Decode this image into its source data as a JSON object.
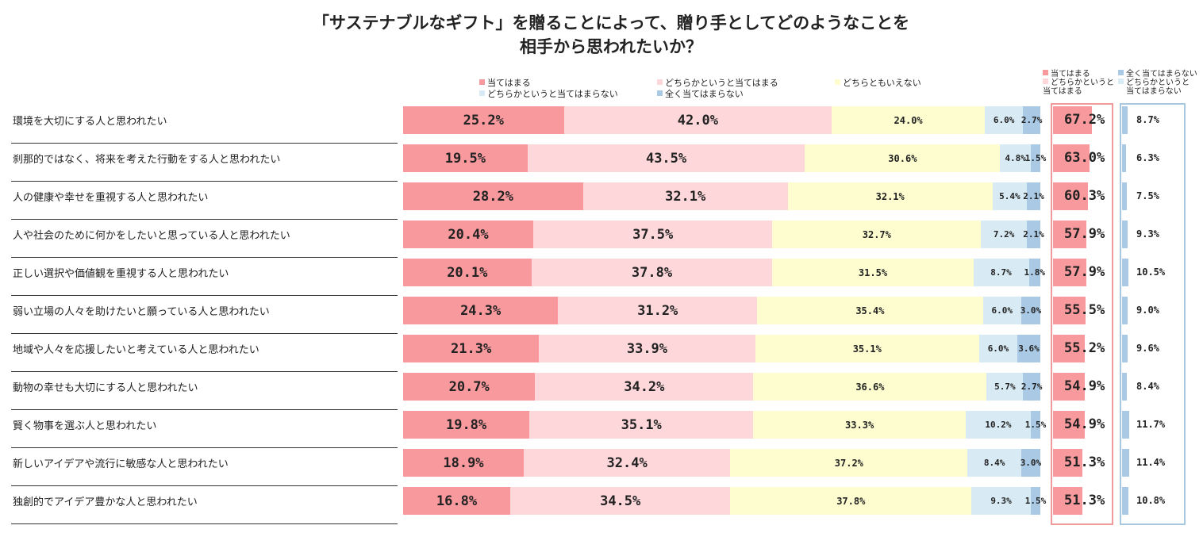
{
  "chart_data": {
    "type": "bar",
    "orientation": "horizontal",
    "stacked": true,
    "title_lines": [
      "「サステナブルなギフト」を贈ることによって、贈り手としてどのようなことを",
      "相手から思われたいか？"
    ],
    "categories": [
      "環境を大切にする人と思われたい",
      "刹那的ではなく、将来を考えた行動をする人と思われたい",
      "人の健康や幸せを重視する人と思われたい",
      "人や社会のために何かをしたいと思っている人と思われたい",
      "正しい選択や価値観を重視する人と思われたい",
      "弱い立場の人々を助けたいと願っている人と思われたい",
      "地域や人々を応援したいと考えている人と思われたい",
      "動物の幸せも大切にする人と思われたい",
      "賢く物事を選ぶ人と思われたい",
      "新しいアイデアや流行に敏感な人と思われたい",
      "独創的でアイデア豊かな人と思われたい"
    ],
    "series": [
      {
        "name": "当てはまる",
        "color": "#f8999d",
        "values": [
          25.2,
          19.5,
          28.2,
          20.4,
          20.1,
          24.3,
          21.3,
          20.7,
          19.8,
          18.9,
          16.8
        ]
      },
      {
        "name": "どちらかというと当てはまる",
        "color": "#fdd7da",
        "values": [
          42.0,
          43.5,
          32.1,
          37.5,
          37.8,
          31.2,
          33.9,
          34.2,
          35.1,
          32.4,
          34.5
        ]
      },
      {
        "name": "どちらともいえない",
        "color": "#fdfdd0",
        "values": [
          24.0,
          30.6,
          32.1,
          32.7,
          31.5,
          35.4,
          35.1,
          36.6,
          33.3,
          37.2,
          37.8
        ]
      },
      {
        "name": "どちらかというと当てはまらない",
        "color": "#d8eaf3",
        "values": [
          6.0,
          4.8,
          5.4,
          7.2,
          8.7,
          6.0,
          6.0,
          5.7,
          10.2,
          8.4,
          9.3
        ]
      },
      {
        "name": "全く当てはまらない",
        "color": "#a9c9e4",
        "values": [
          2.7,
          1.5,
          2.1,
          2.1,
          1.8,
          3.0,
          3.6,
          2.7,
          1.5,
          3.0,
          1.5
        ]
      }
    ],
    "summary_positive": {
      "legend": [
        "当てはまる",
        "どちらかというと",
        "当てはまる"
      ],
      "values": [
        67.2,
        63.0,
        60.3,
        57.9,
        57.9,
        55.5,
        55.2,
        54.9,
        54.9,
        51.3,
        51.3
      ]
    },
    "summary_negative": {
      "legend": [
        "全く当てはまらない",
        "どちらかというと",
        "当てはまらない"
      ],
      "values": [
        8.7,
        6.3,
        7.5,
        9.3,
        10.5,
        9.0,
        9.6,
        8.4,
        11.7,
        11.4,
        10.8
      ]
    },
    "unit": "%",
    "xlim": [
      0,
      100
    ],
    "legend_position": "top"
  }
}
